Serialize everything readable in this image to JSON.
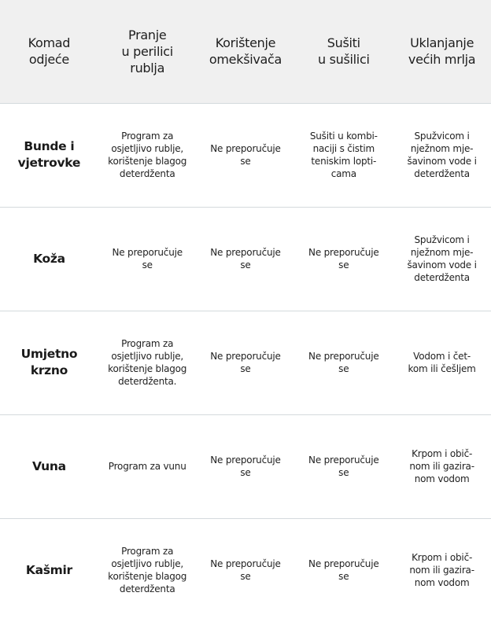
{
  "headers": [
    "Komad\nodjeće",
    "Pranje\nu perilici\nrublja",
    "Korištenje\nomekšivača",
    "Sušiti\nu sušilici",
    "Uklanjanje\nvećih mrlja"
  ],
  "rows": [
    [
      "Bunde i\nvjetrovke",
      "Program za\nosjetljivo rublje,\nkorištenje blagog\ndeterdženta",
      "Ne preporučuje\nse",
      "Sušiti u kombi-\nnaciji s čistim\nteniskim lopti-\ncama",
      "Spužvicom i\nnježnom mje-\nšavinom vode i\ndeterdženta"
    ],
    [
      "Koža",
      "Ne preporučuje\nse",
      "Ne preporučuje\nse",
      "Ne preporučuje\nse",
      "Spužvicom i\nnježnom mje-\nšavinom vode i\ndeterdženta"
    ],
    [
      "Umjetno\nkrzno",
      "Program za\nosjetljivo rublje,\nkorištenje blagog\ndeterdženta.",
      "Ne preporučuje\nse",
      "Ne preporučuje\nse",
      "Vodom i čet-\nkom ili češljem"
    ],
    [
      "Vuna",
      "Program za vunu",
      "Ne preporučuje\nse",
      "Ne preporučuje\nse",
      "Krpom i obič-\nnom ili gazira-\nnom vodom"
    ],
    [
      "Kašmir",
      "Program za\nosjetljivo rublje,\nkorištenje blagog\ndeterdženta",
      "Ne preporučuje\nse",
      "Ne preporučuje\nse",
      "Krpom i obič-\nnom ili gazira-\nnom vodom"
    ]
  ]
}
